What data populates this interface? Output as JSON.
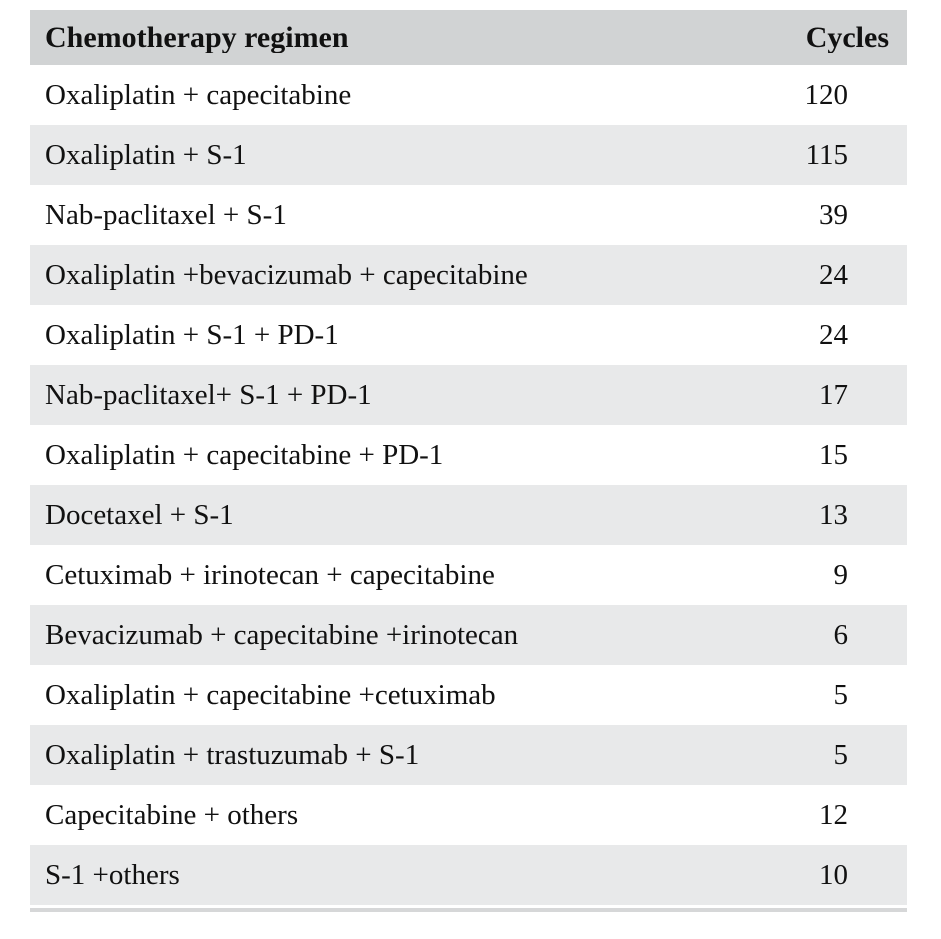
{
  "table": {
    "columns": [
      {
        "label": "Chemotherapy regimen"
      },
      {
        "label": "Cycles"
      }
    ],
    "rows": [
      {
        "regimen": "Oxaliplatin + capecitabine",
        "cycles": "120"
      },
      {
        "regimen": "Oxaliplatin + S-1",
        "cycles": "115"
      },
      {
        "regimen": "Nab-paclitaxel + S-1",
        "cycles": "39"
      },
      {
        "regimen": "Oxaliplatin +bevacizumab + capecitabine",
        "cycles": "24"
      },
      {
        "regimen": "Oxaliplatin + S-1 + PD-1",
        "cycles": "24"
      },
      {
        "regimen": "Nab-paclitaxel+ S-1 + PD-1",
        "cycles": "17"
      },
      {
        "regimen": "Oxaliplatin + capecitabine + PD-1",
        "cycles": "15"
      },
      {
        "regimen": "Docetaxel + S-1",
        "cycles": "13"
      },
      {
        "regimen": "Cetuximab + irinotecan + capecitabine",
        "cycles": "9"
      },
      {
        "regimen": "Bevacizumab + capecitabine +irinotecan",
        "cycles": "6"
      },
      {
        "regimen": "Oxaliplatin + capecitabine +cetuximab",
        "cycles": "5"
      },
      {
        "regimen": "Oxaliplatin + trastuzumab + S-1",
        "cycles": "5"
      },
      {
        "regimen": "Capecitabine + others",
        "cycles": "12"
      },
      {
        "regimen": "S-1 +others",
        "cycles": "10"
      }
    ]
  },
  "colors": {
    "header_bg": "#d1d3d4",
    "row_alt_bg": "#e8e9ea",
    "bottom_rule": "#d6d7d8",
    "text": "#111111",
    "page_bg": "#ffffff"
  },
  "chart_data": {
    "type": "table",
    "title": "",
    "columns": [
      "Chemotherapy regimen",
      "Cycles"
    ],
    "categories": [
      "Oxaliplatin + capecitabine",
      "Oxaliplatin + S-1",
      "Nab-paclitaxel + S-1",
      "Oxaliplatin +bevacizumab + capecitabine",
      "Oxaliplatin + S-1 + PD-1",
      "Nab-paclitaxel+ S-1 + PD-1",
      "Oxaliplatin + capecitabine + PD-1",
      "Docetaxel + S-1",
      "Cetuximab + irinotecan + capecitabine",
      "Bevacizumab + capecitabine +irinotecan",
      "Oxaliplatin + capecitabine +cetuximab",
      "Oxaliplatin + trastuzumab + S-1",
      "Capecitabine + others",
      "S-1 +others"
    ],
    "values": [
      120,
      115,
      39,
      24,
      24,
      17,
      15,
      13,
      9,
      6,
      5,
      5,
      12,
      10
    ]
  }
}
